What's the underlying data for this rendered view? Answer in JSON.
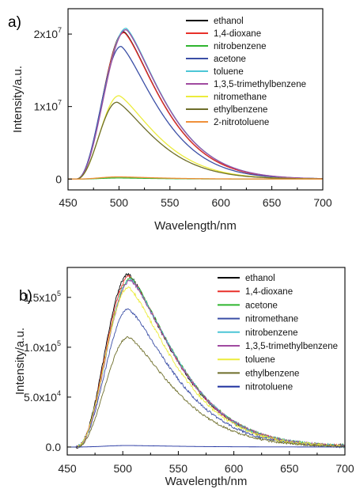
{
  "chart_data": [
    {
      "panel_label": "a)",
      "type": "line",
      "xlabel": "Wavelength/nm",
      "ylabel": "Intensity/a.u.",
      "xlim": [
        450,
        700
      ],
      "ylim": [
        -1500000,
        23500000
      ],
      "x_ticks": [
        450,
        500,
        550,
        600,
        650,
        700
      ],
      "y_ticks": [
        {
          "value": 0,
          "base": "0",
          "exp": ""
        },
        {
          "value": 10000000,
          "base": "1x10",
          "exp": "7"
        },
        {
          "value": 20000000,
          "base": "2x10",
          "exp": "7"
        }
      ],
      "legend_position": "top-right",
      "spectrum": {
        "onset": 458,
        "fifty_rise": 482,
        "tail_decay_nm": 52
      },
      "series": [
        {
          "name": "ethanol",
          "color": "#000000",
          "peak_x": 505,
          "peak_y": 20300000
        },
        {
          "name": "1,4-dioxane",
          "color": "#e8302a",
          "peak_x": 505,
          "peak_y": 20200000
        },
        {
          "name": "nitrobenzene",
          "color": "#2fb52f",
          "peak_x": 500,
          "peak_y": 150000
        },
        {
          "name": "acetone",
          "color": "#3b4fa6",
          "peak_x": 502,
          "peak_y": 18300000
        },
        {
          "name": "toluene",
          "color": "#4cc6d6",
          "peak_x": 507,
          "peak_y": 20800000
        },
        {
          "name": "1,3,5-trimethylbenzene",
          "color": "#a04aa0",
          "peak_x": 507,
          "peak_y": 20600000
        },
        {
          "name": "nitromethane",
          "color": "#ecec3c",
          "peak_x": 500,
          "peak_y": 11500000
        },
        {
          "name": "ethylbenzene",
          "color": "#6e6e2a",
          "peak_x": 498,
          "peak_y": 10600000
        },
        {
          "name": "2-nitrotoluene",
          "color": "#f0903a",
          "peak_x": 500,
          "peak_y": 300000
        }
      ]
    },
    {
      "panel_label": "b)",
      "type": "line",
      "xlabel": "Wavelength/nm",
      "ylabel": "Intensity/a.u.",
      "xlim": [
        450,
        700
      ],
      "ylim": [
        -8000,
        180000
      ],
      "x_ticks": [
        450,
        500,
        550,
        600,
        650,
        700
      ],
      "y_ticks": [
        {
          "value": 0,
          "base": "0.0",
          "exp": ""
        },
        {
          "value": 50000,
          "base": "5.0x10",
          "exp": "4"
        },
        {
          "value": 100000,
          "base": "1.0x10",
          "exp": "5"
        },
        {
          "value": 150000,
          "base": "1.5x10",
          "exp": "5"
        }
      ],
      "legend_position": "top-right",
      "spectrum": {
        "onset": 458,
        "fifty_rise": 482,
        "tail_decay_nm": 58
      },
      "series": [
        {
          "name": "ethanol",
          "color": "#000000",
          "peak_x": 505,
          "peak_y": 173000
        },
        {
          "name": "1,4-dioxane",
          "color": "#e8302a",
          "peak_x": 506,
          "peak_y": 171000
        },
        {
          "name": "acetone",
          "color": "#2fb52f",
          "peak_x": 507,
          "peak_y": 169000
        },
        {
          "name": "nitromethane",
          "color": "#3b4fa6",
          "peak_x": 505,
          "peak_y": 138000
        },
        {
          "name": "nitrobenzene",
          "color": "#4cc6d6",
          "peak_x": 507,
          "peak_y": 168000
        },
        {
          "name": "1,3,5-trimethylbenzene",
          "color": "#a04aa0",
          "peak_x": 507,
          "peak_y": 167000
        },
        {
          "name": "toluene",
          "color": "#ecec3c",
          "peak_x": 505,
          "peak_y": 160000
        },
        {
          "name": "ethylbenzene",
          "color": "#6e6e2a",
          "peak_x": 505,
          "peak_y": 110000
        },
        {
          "name": "nitrotoluene",
          "color": "#1c2f9e",
          "peak_x": 505,
          "peak_y": 1500
        }
      ]
    }
  ]
}
